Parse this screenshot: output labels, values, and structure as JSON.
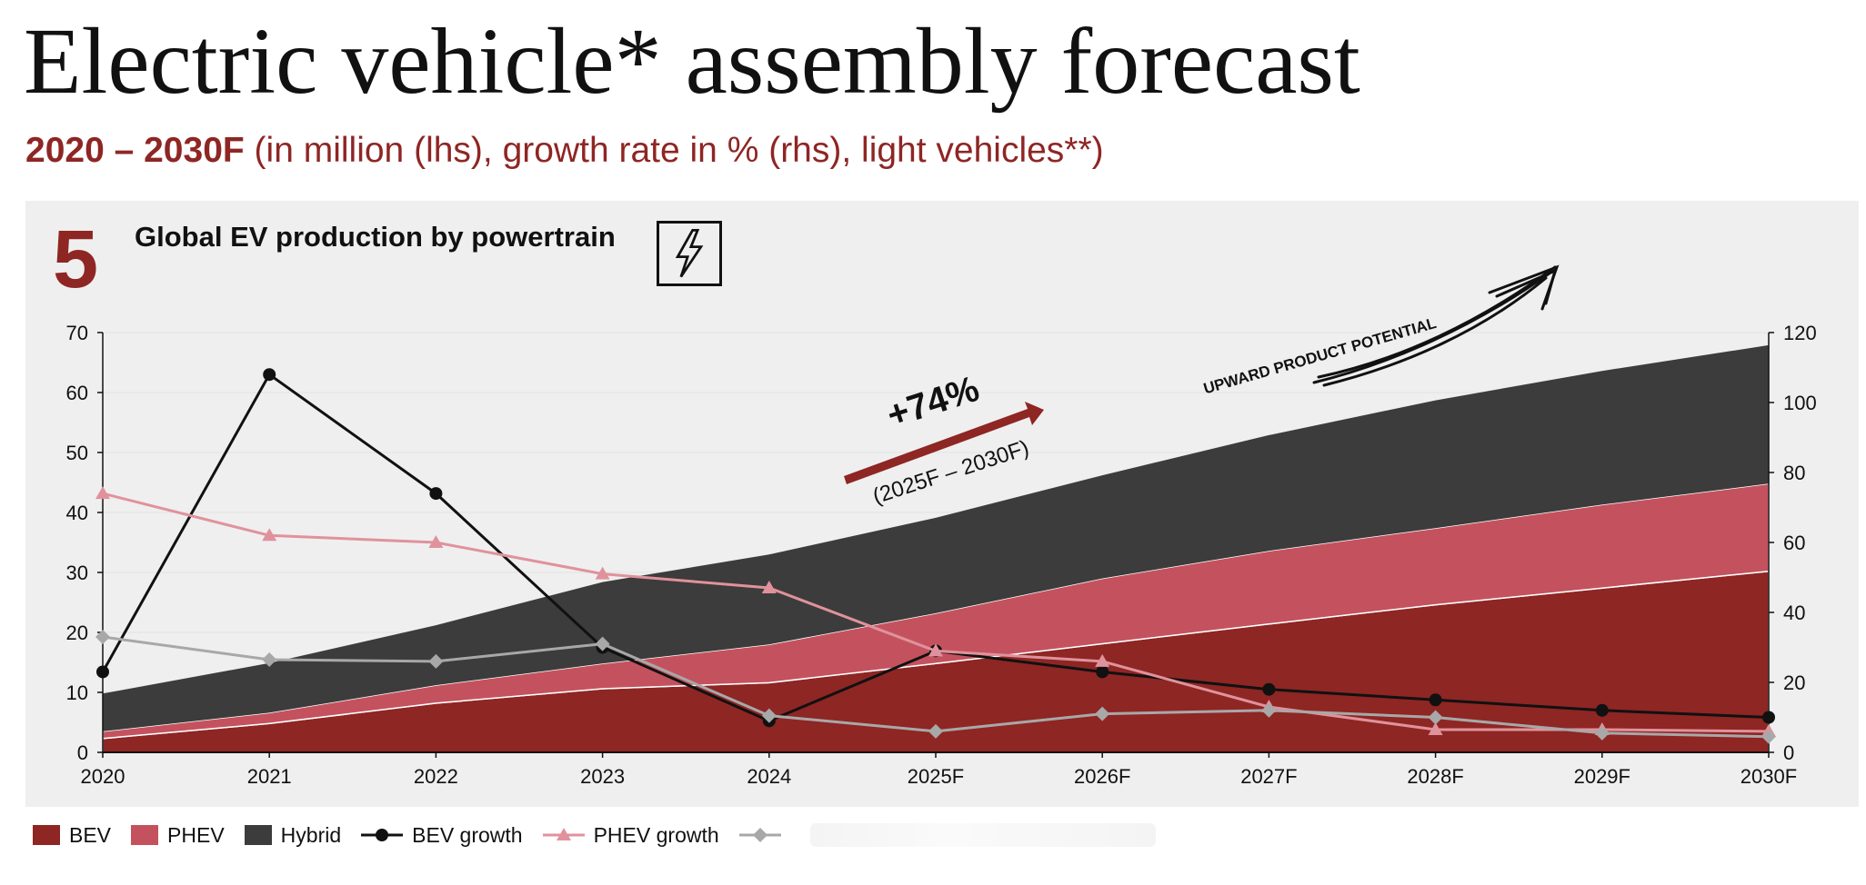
{
  "header": {
    "title": "Electric vehicle* assembly forecast",
    "subtitle_bold": "2020 – 2030F",
    "subtitle_rest": " (in million (lhs), growth rate in % (rhs), light vehicles**)"
  },
  "panel": {
    "badge": "5",
    "title": "Global EV production by powertrain",
    "icon": "lightning-bolt-icon"
  },
  "annotations": {
    "growth_value": "+74%",
    "growth_period": "(2025F – 2030F)",
    "upward_text": "UPWARD PRODUCT POTENTIAL"
  },
  "colors": {
    "bev": "#8e2624",
    "phev": "#c4525e",
    "hybrid": "#3c3c3c",
    "bev_growth": "#111111",
    "phev_growth": "#e0929c",
    "hybrid_growth": "#a8a8a8",
    "brand": "#8e2624",
    "panel_bg": "#efefef"
  },
  "legend": {
    "items": [
      {
        "label": "BEV",
        "kind": "area",
        "key": "bev"
      },
      {
        "label": "PHEV",
        "kind": "area",
        "key": "phev"
      },
      {
        "label": "Hybrid",
        "kind": "area",
        "key": "hybrid"
      },
      {
        "label": "BEV growth",
        "kind": "line",
        "marker": "circle",
        "key": "bev_growth"
      },
      {
        "label": "PHEV growth",
        "kind": "line",
        "marker": "triangle",
        "key": "phev_growth"
      },
      {
        "label": "",
        "kind": "line",
        "marker": "diamond",
        "key": "hybrid_growth"
      }
    ]
  },
  "chart_data": {
    "type": "area",
    "title": "Global EV production by powertrain",
    "categories": [
      "2020",
      "2021",
      "2022",
      "2023",
      "2024",
      "2025F",
      "2026F",
      "2027F",
      "2028F",
      "2029F",
      "2030F"
    ],
    "y_left": {
      "range": [
        0,
        70
      ],
      "ticks": [
        0,
        10,
        20,
        30,
        40,
        50,
        60,
        70
      ],
      "unit": "million"
    },
    "y_right": {
      "range": [
        0,
        120
      ],
      "ticks": [
        0,
        20,
        40,
        60,
        80,
        100,
        120
      ],
      "unit": "%"
    },
    "stacked_area_series": [
      {
        "name": "BEV",
        "axis": "left",
        "values": [
          2.3,
          4.8,
          8.2,
          10.6,
          11.6,
          14.8,
          18.1,
          21.4,
          24.6,
          27.4,
          30.2
        ]
      },
      {
        "name": "PHEV",
        "axis": "left",
        "values": [
          1.2,
          1.8,
          3.0,
          4.2,
          6.4,
          8.4,
          10.9,
          12.2,
          12.8,
          13.9,
          14.6
        ]
      },
      {
        "name": "Hybrid",
        "axis": "left",
        "values": [
          6.3,
          8.3,
          10.0,
          13.6,
          15.0,
          15.9,
          17.2,
          19.3,
          21.3,
          22.3,
          23.1
        ]
      }
    ],
    "line_series": [
      {
        "name": "BEV growth",
        "axis": "right",
        "marker": "circle",
        "values": [
          23,
          108,
          74,
          30,
          9,
          29,
          23,
          18,
          15,
          12,
          10
        ]
      },
      {
        "name": "PHEV growth",
        "axis": "right",
        "marker": "triangle",
        "values": [
          74,
          62,
          60,
          51,
          47,
          29,
          26,
          13,
          6.5,
          6.5,
          6
        ]
      },
      {
        "name": "",
        "axis": "right",
        "marker": "diamond",
        "values": [
          33,
          26.5,
          26,
          31,
          10.5,
          6,
          11,
          12,
          10,
          5.5,
          4.5
        ]
      }
    ],
    "grid": true,
    "legend_position": "bottom-left"
  }
}
